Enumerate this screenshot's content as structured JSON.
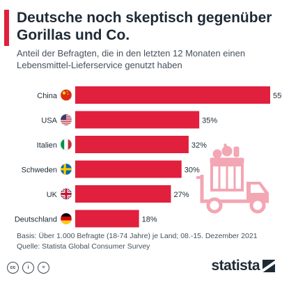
{
  "header": {
    "title": "Deutsche noch skeptisch gegenüber Gorillas und Co.",
    "subtitle": "Anteil der Befragten, die in den letzten 12 Monaten einen Lebensmittel-Lieferservice genutzt haben"
  },
  "chart_data": {
    "type": "bar",
    "orientation": "horizontal",
    "categories": [
      "China",
      "USA",
      "Italien",
      "Schweden",
      "UK",
      "Deutschland"
    ],
    "values": [
      55,
      35,
      32,
      30,
      27,
      18
    ],
    "value_suffix": "%",
    "flags": [
      "china-flag-icon",
      "usa-flag-icon",
      "italy-flag-icon",
      "sweden-flag-icon",
      "uk-flag-icon",
      "germany-flag-icon"
    ],
    "title": "Deutsche noch skeptisch gegenüber Gorillas und Co.",
    "xlim": [
      0,
      55
    ],
    "bar_color": "#e0203c",
    "grid": false
  },
  "footer": {
    "basis": "Basis: Über 1.000 Befragte (18-74 Jahre) je Land; 08.-15. Dezember 2021",
    "source": "Quelle: Statista Global Consumer Survey"
  },
  "branding": {
    "logo_text": "statista",
    "license_icons": [
      "cc-icon",
      "by-icon",
      "equals-icon"
    ],
    "license_labels": [
      "cc",
      "i",
      "="
    ]
  },
  "colors": {
    "accent": "#e0203c",
    "text_dark": "#1e2a36",
    "illustration": "#f3a6b3"
  }
}
